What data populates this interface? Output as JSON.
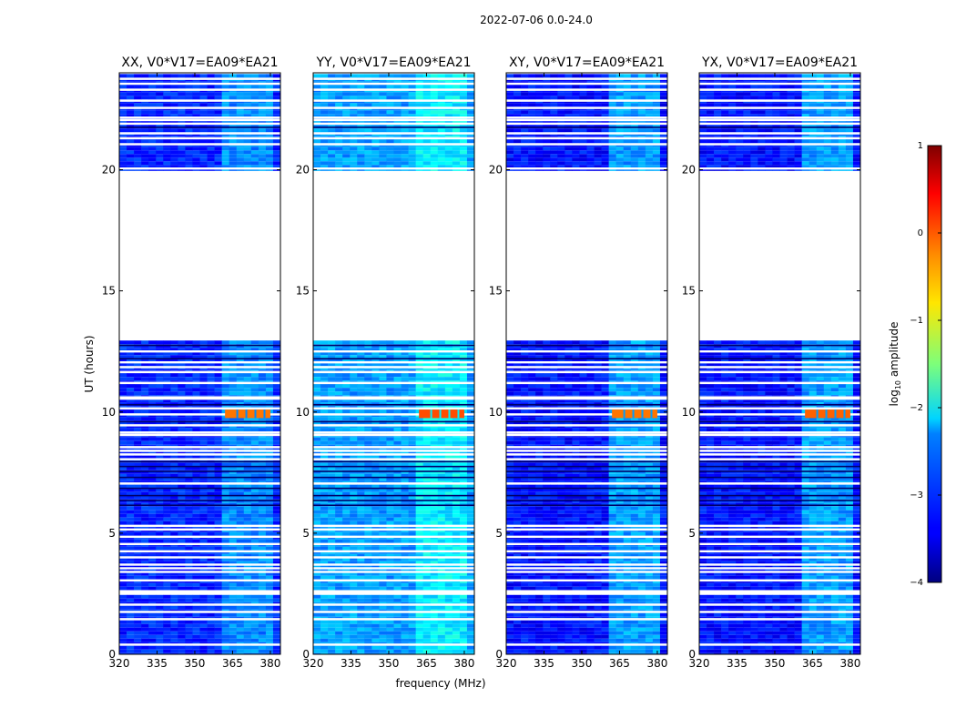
{
  "chart_data": {
    "type": "heatmap",
    "suptitle": "2022-07-06 0.0-24.0",
    "xlabel": "frequency (MHz)",
    "ylabel": "UT (hours)",
    "xlim": [
      320,
      384
    ],
    "ylim": [
      0,
      24
    ],
    "xticks": [
      320,
      335,
      350,
      365,
      380
    ],
    "yticks": [
      0,
      5,
      10,
      15,
      20
    ],
    "colorbar": {
      "label": "log10 amplitude",
      "label_main": "log",
      "label_sub": "10",
      "label_rest": " amplitude",
      "range": [
        -4,
        1
      ],
      "ticks": [
        1,
        0,
        -1,
        -2,
        -3,
        -4
      ],
      "colormap": "jet"
    },
    "panels": [
      {
        "title": "XX, V0*V17=EA09*EA21",
        "baseline": -3.2,
        "rfi_level": -2.7,
        "burst_level": -0.2
      },
      {
        "title": "YY, V0*V17=EA09*EA21",
        "baseline": -2.6,
        "rfi_level": -2.2,
        "burst_level": 0.0
      },
      {
        "title": "XY, V0*V17=EA09*EA21",
        "baseline": -3.3,
        "rfi_level": -2.6,
        "burst_level": -0.2
      },
      {
        "title": "YX, V0*V17=EA09*EA21",
        "baseline": -3.3,
        "rfi_level": -2.6,
        "burst_level": -0.1
      }
    ],
    "data_hours": [
      [
        0,
        2.45
      ],
      [
        2.65,
        9.1
      ],
      [
        9.2,
        10.55
      ],
      [
        10.65,
        12.95
      ],
      [
        19.95,
        23.95
      ]
    ],
    "flagged_hours": [
      0.4,
      1.45,
      1.75,
      2.05,
      3.05,
      3.4,
      3.55,
      3.7,
      4.0,
      4.25,
      4.55,
      4.85,
      5.15,
      5.3,
      7.05,
      8.05,
      8.25,
      8.4,
      8.55,
      9.05,
      9.45,
      9.9,
      10.15,
      10.55,
      11.2,
      11.65,
      11.85,
      12.05,
      12.5,
      20.05,
      21.05,
      21.3,
      21.5,
      21.9,
      22.05,
      22.15,
      22.55,
      22.85,
      23.3,
      23.55,
      23.75
    ],
    "dark_hours": [
      6.15,
      6.35,
      6.55,
      6.85,
      7.3,
      7.55,
      7.75,
      7.95,
      9.6,
      10.3,
      12.2,
      12.75,
      21.75
    ],
    "rfi_band_mhz": [
      362,
      380
    ],
    "burst_hours": [
      9.75,
      10.1
    ]
  }
}
